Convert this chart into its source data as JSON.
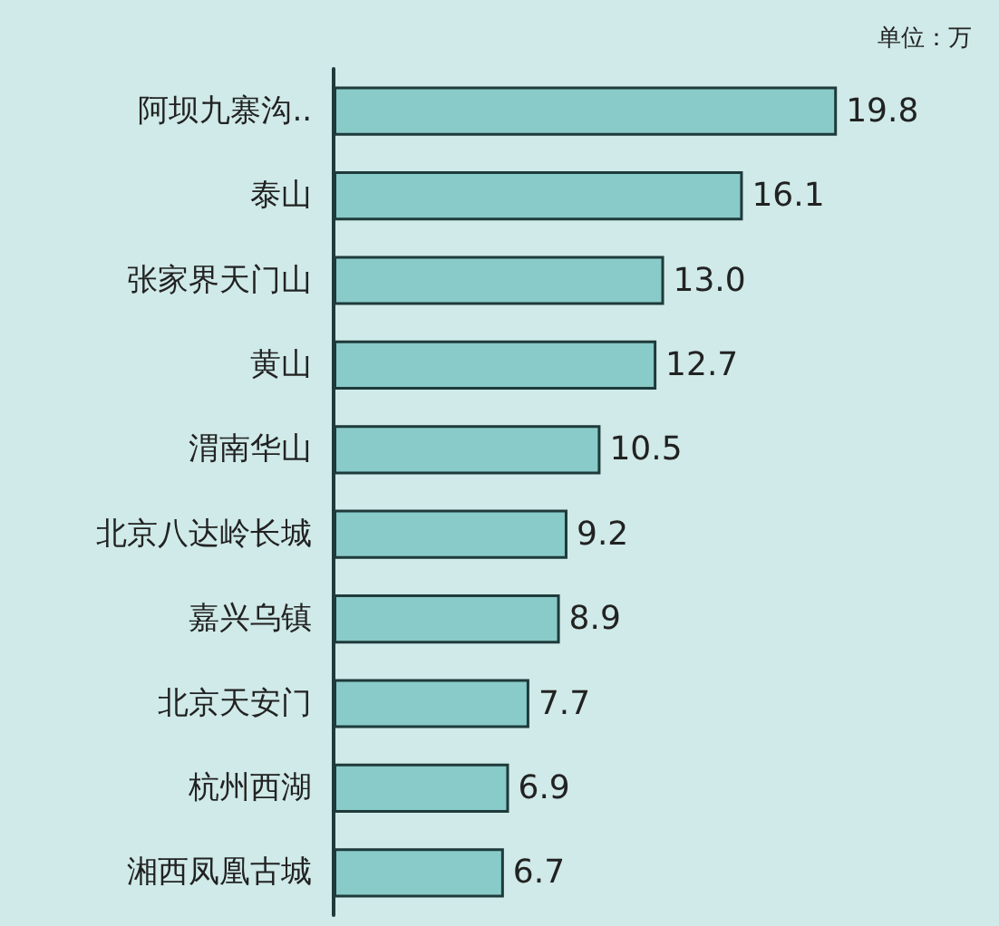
{
  "chart_data": {
    "type": "bar",
    "orientation": "horizontal",
    "subtitle": "单位：万",
    "categories": [
      "阿坝九寨沟..",
      "泰山",
      "张家界天门山",
      "黄山",
      "渭南华山",
      "北京八达岭长城",
      "嘉兴乌镇",
      "北京天安门",
      "杭州西湖",
      "湘西凤凰古城"
    ],
    "values": [
      19.8,
      16.1,
      13.0,
      12.7,
      10.5,
      9.2,
      8.9,
      7.7,
      6.9,
      6.7
    ],
    "value_labels": [
      "19.8",
      "16.1",
      "13.0",
      "12.7",
      "10.5",
      "9.2",
      "8.9",
      "7.7",
      "6.9",
      "6.7"
    ],
    "color": "#88cbc8"
  }
}
